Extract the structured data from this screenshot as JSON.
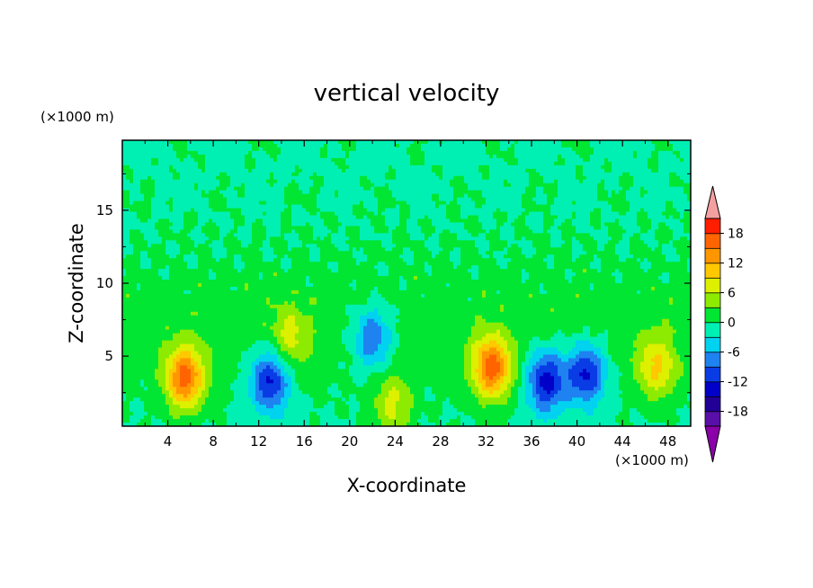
{
  "chart_data": {
    "type": "heatmap",
    "subtype": "filled-contour",
    "title": "vertical velocity",
    "xlabel": "X-coordinate",
    "ylabel": "Z-coordinate",
    "x_unit": "(×1000 m)",
    "y_unit": "(×1000 m)",
    "xlim": [
      0,
      50
    ],
    "ylim": [
      0.2,
      19.8
    ],
    "x_ticks": [
      4,
      8,
      12,
      16,
      20,
      24,
      28,
      32,
      36,
      40,
      44,
      48
    ],
    "y_ticks": [
      5,
      10,
      15
    ],
    "colorbar": {
      "levels": [
        -21,
        -18,
        -15,
        -12,
        -9,
        -6,
        -3,
        0,
        3,
        6,
        9,
        12,
        15,
        18,
        21
      ],
      "tick_labels": [
        "18",
        "12",
        "6",
        "0",
        "-6",
        "-12",
        "-18"
      ],
      "tick_values": [
        18,
        12,
        6,
        0,
        -6,
        -12,
        -18
      ],
      "colors": [
        "#5A0FA8",
        "#220096",
        "#0000C8",
        "#0A3CE6",
        "#1E82F0",
        "#00D2F0",
        "#00F0B4",
        "#00E632",
        "#8CEB00",
        "#DCF000",
        "#FFC800",
        "#FF9600",
        "#FF6400",
        "#FF1E00"
      ],
      "under_color": "#8B00A8",
      "over_color": "#F5A0A0",
      "extend": "both"
    },
    "features": [
      {
        "kind": "updraft",
        "x": 5.5,
        "z": 3.5,
        "peak": 16
      },
      {
        "kind": "downdraft",
        "x": 13.0,
        "z": 3.3,
        "peak": -13
      },
      {
        "kind": "updraft",
        "x": 14.8,
        "z": 6.2,
        "peak": 6
      },
      {
        "kind": "downdraft",
        "x": 22.0,
        "z": 6.3,
        "peak": -10
      },
      {
        "kind": "updraft",
        "x": 23.8,
        "z": 1.6,
        "peak": 7
      },
      {
        "kind": "updraft",
        "x": 32.5,
        "z": 4.2,
        "peak": 16
      },
      {
        "kind": "downdraft",
        "x": 37.3,
        "z": 3.3,
        "peak": -14
      },
      {
        "kind": "downdraft",
        "x": 40.8,
        "z": 3.8,
        "peak": -13
      },
      {
        "kind": "updraft",
        "x": 47.0,
        "z": 4.2,
        "peak": 9
      }
    ]
  }
}
